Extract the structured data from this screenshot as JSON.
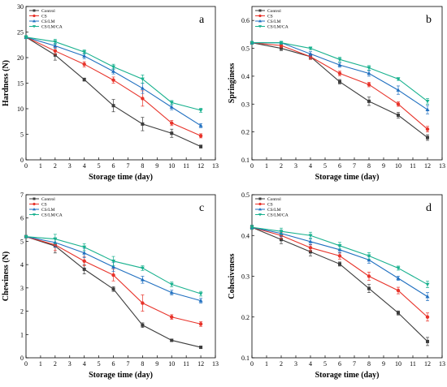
{
  "chart_data": [
    {
      "type": "line",
      "panel": "a",
      "xlabel": "Storage time (day)",
      "ylabel": "Hardness (N)",
      "xlim": [
        0,
        13
      ],
      "ylim": [
        0,
        30
      ],
      "xticks": [
        0,
        1,
        2,
        3,
        4,
        5,
        6,
        7,
        8,
        9,
        10,
        11,
        12,
        13
      ],
      "yticks": [
        0,
        5,
        10,
        15,
        20,
        25,
        30
      ],
      "x": [
        0,
        2,
        4,
        6,
        8,
        10,
        12
      ],
      "legend_position": "top-left",
      "series": [
        {
          "name": "Control",
          "color": "#3c3c3c",
          "marker": "square",
          "values": [
            24.0,
            20.5,
            15.7,
            10.6,
            7.0,
            5.2,
            2.6
          ],
          "errors": [
            0.3,
            1.0,
            0.3,
            1.2,
            1.3,
            0.8,
            0.3
          ]
        },
        {
          "name": "CS",
          "color": "#e8332a",
          "marker": "circle",
          "values": [
            24.0,
            21.3,
            18.7,
            15.6,
            12.0,
            7.2,
            4.7
          ],
          "errors": [
            0.3,
            0.7,
            0.5,
            0.6,
            1.5,
            0.5,
            0.4
          ]
        },
        {
          "name": "CS/LM",
          "color": "#1f6fc0",
          "marker": "triangle-up",
          "values": [
            24.0,
            22.3,
            20.3,
            17.3,
            14.0,
            10.3,
            6.7
          ],
          "errors": [
            0.3,
            0.5,
            0.5,
            0.5,
            1.0,
            0.5,
            0.4
          ]
        },
        {
          "name": "CS/LM/CA",
          "color": "#18b18e",
          "marker": "triangle-down",
          "values": [
            24.0,
            23.1,
            21.1,
            18.2,
            15.8,
            11.2,
            9.7
          ],
          "errors": [
            0.3,
            0.5,
            0.4,
            0.5,
            0.8,
            0.4,
            0.4
          ]
        }
      ]
    },
    {
      "type": "line",
      "panel": "b",
      "xlabel": "Storage time (day)",
      "ylabel": "Springiness",
      "xlim": [
        0,
        13
      ],
      "ylim": [
        0.1,
        0.65
      ],
      "xticks": [
        0,
        1,
        2,
        3,
        4,
        5,
        6,
        7,
        8,
        9,
        10,
        11,
        12,
        13
      ],
      "yticks": [
        0.1,
        0.2,
        0.3,
        0.4,
        0.5,
        0.6
      ],
      "x": [
        0,
        2,
        4,
        6,
        8,
        10,
        12
      ],
      "legend_position": "top-left",
      "series": [
        {
          "name": "Control",
          "color": "#3c3c3c",
          "marker": "square",
          "values": [
            0.52,
            0.5,
            0.47,
            0.38,
            0.31,
            0.26,
            0.18
          ],
          "errors": [
            0.005,
            0.008,
            0.008,
            0.008,
            0.015,
            0.01,
            0.01
          ]
        },
        {
          "name": "CS",
          "color": "#e8332a",
          "marker": "circle",
          "values": [
            0.52,
            0.51,
            0.47,
            0.41,
            0.37,
            0.3,
            0.21
          ],
          "errors": [
            0.005,
            0.008,
            0.01,
            0.008,
            0.008,
            0.008,
            0.01
          ]
        },
        {
          "name": "CS/LM",
          "color": "#1f6fc0",
          "marker": "triangle-up",
          "values": [
            0.52,
            0.52,
            0.48,
            0.44,
            0.41,
            0.35,
            0.28
          ],
          "errors": [
            0.005,
            0.005,
            0.008,
            0.008,
            0.01,
            0.015,
            0.015
          ]
        },
        {
          "name": "CS/LM/CA",
          "color": "#18b18e",
          "marker": "triangle-down",
          "values": [
            0.52,
            0.52,
            0.5,
            0.46,
            0.43,
            0.39,
            0.31
          ],
          "errors": [
            0.005,
            0.005,
            0.005,
            0.008,
            0.008,
            0.005,
            0.01
          ]
        }
      ]
    },
    {
      "type": "line",
      "panel": "c",
      "xlabel": "Storage time (day)",
      "ylabel": "Chewiness (N)",
      "xlim": [
        0,
        13
      ],
      "ylim": [
        0,
        7
      ],
      "xticks": [
        0,
        1,
        2,
        3,
        4,
        5,
        6,
        7,
        8,
        9,
        10,
        11,
        12,
        13
      ],
      "yticks": [
        0,
        1,
        2,
        3,
        4,
        5,
        6,
        7
      ],
      "x": [
        0,
        2,
        4,
        6,
        8,
        10,
        12
      ],
      "legend_position": "top-left",
      "series": [
        {
          "name": "Control",
          "color": "#3c3c3c",
          "marker": "square",
          "values": [
            5.2,
            4.8,
            3.8,
            2.95,
            1.4,
            0.75,
            0.45
          ],
          "errors": [
            0.05,
            0.3,
            0.2,
            0.1,
            0.1,
            0.05,
            0.05
          ]
        },
        {
          "name": "CS",
          "color": "#e8332a",
          "marker": "circle",
          "values": [
            5.2,
            4.85,
            4.15,
            3.55,
            2.35,
            1.75,
            1.45
          ],
          "errors": [
            0.05,
            0.25,
            0.2,
            0.25,
            0.35,
            0.1,
            0.1
          ]
        },
        {
          "name": "CS/LM",
          "color": "#1f6fc0",
          "marker": "triangle-up",
          "values": [
            5.2,
            4.95,
            4.5,
            3.9,
            3.35,
            2.8,
            2.45
          ],
          "errors": [
            0.05,
            0.2,
            0.2,
            0.2,
            0.15,
            0.1,
            0.1
          ]
        },
        {
          "name": "CS/LM/CA",
          "color": "#18b18e",
          "marker": "triangle-down",
          "values": [
            5.2,
            5.1,
            4.75,
            4.15,
            3.85,
            3.15,
            2.75
          ],
          "errors": [
            0.05,
            0.2,
            0.15,
            0.2,
            0.1,
            0.1,
            0.1
          ]
        }
      ]
    },
    {
      "type": "line",
      "panel": "d",
      "xlabel": "Storage time (day)",
      "ylabel": "Cohesiveness",
      "xlim": [
        0,
        13
      ],
      "ylim": [
        0.1,
        0.5
      ],
      "xticks": [
        0,
        1,
        2,
        3,
        4,
        5,
        6,
        7,
        8,
        9,
        10,
        11,
        12,
        13
      ],
      "yticks": [
        0.1,
        0.2,
        0.3,
        0.4,
        0.5
      ],
      "x": [
        0,
        2,
        4,
        6,
        8,
        10,
        12
      ],
      "legend_position": "top-left",
      "series": [
        {
          "name": "Control",
          "color": "#3c3c3c",
          "marker": "square",
          "values": [
            0.42,
            0.39,
            0.36,
            0.33,
            0.27,
            0.21,
            0.14
          ],
          "errors": [
            0.005,
            0.01,
            0.01,
            0.005,
            0.01,
            0.005,
            0.01
          ]
        },
        {
          "name": "CS",
          "color": "#e8332a",
          "marker": "circle",
          "values": [
            0.42,
            0.4,
            0.37,
            0.35,
            0.3,
            0.265,
            0.2
          ],
          "errors": [
            0.005,
            0.008,
            0.008,
            0.008,
            0.01,
            0.008,
            0.01
          ]
        },
        {
          "name": "CS/LM",
          "color": "#1f6fc0",
          "marker": "triangle-up",
          "values": [
            0.42,
            0.405,
            0.385,
            0.365,
            0.34,
            0.295,
            0.25
          ],
          "errors": [
            0.005,
            0.008,
            0.008,
            0.008,
            0.008,
            0.005,
            0.01
          ]
        },
        {
          "name": "CS/LM/CA",
          "color": "#18b18e",
          "marker": "triangle-down",
          "values": [
            0.42,
            0.41,
            0.4,
            0.375,
            0.35,
            0.32,
            0.28
          ],
          "errors": [
            0.005,
            0.008,
            0.008,
            0.008,
            0.008,
            0.005,
            0.008
          ]
        }
      ]
    }
  ]
}
